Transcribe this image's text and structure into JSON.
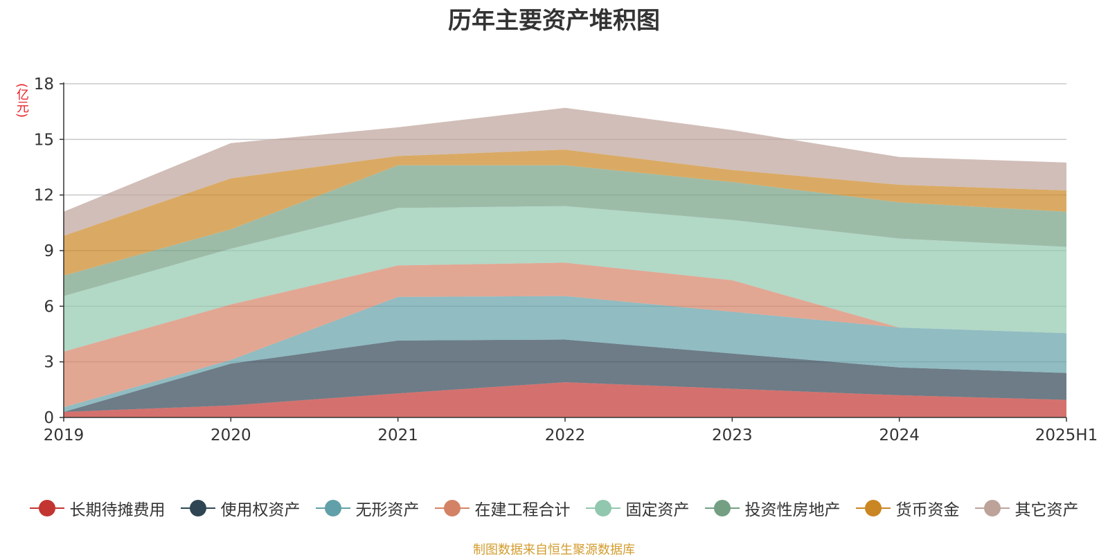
{
  "chart_data": {
    "type": "area",
    "stacked": true,
    "title": "历年主要资产堆积图",
    "ylabel": "(亿元)",
    "ylim": [
      0,
      18
    ],
    "yticks": [
      0,
      3,
      6,
      9,
      12,
      15,
      18
    ],
    "categories": [
      "2019",
      "2020",
      "2021",
      "2022",
      "2023",
      "2024",
      "2025H1"
    ],
    "grid": true,
    "legend_position": "bottom",
    "series": [
      {
        "name": "长期待摊费用",
        "color": "#c23531",
        "values": [
          0.3,
          0.65,
          1.3,
          1.9,
          1.55,
          1.2,
          0.95
        ]
      },
      {
        "name": "使用权资产",
        "color": "#2f4554",
        "values": [
          0.0,
          2.25,
          2.85,
          2.3,
          1.9,
          1.5,
          1.45
        ]
      },
      {
        "name": "无形资产",
        "color": "#61a0a8",
        "values": [
          0.25,
          0.2,
          2.35,
          2.35,
          2.25,
          2.15,
          2.15
        ]
      },
      {
        "name": "在建工程合计",
        "color": "#d48265",
        "values": [
          3.0,
          3.0,
          1.7,
          1.8,
          1.7,
          0.0,
          0.0
        ]
      },
      {
        "name": "固定资产",
        "color": "#91c7ae",
        "values": [
          3.0,
          3.0,
          3.1,
          3.05,
          3.25,
          4.8,
          4.65
        ]
      },
      {
        "name": "投资性房地产",
        "color": "#749f83",
        "values": [
          1.1,
          1.05,
          2.3,
          2.2,
          2.05,
          1.95,
          1.9
        ]
      },
      {
        "name": "货币资金",
        "color": "#ca8622",
        "values": [
          2.15,
          2.75,
          0.5,
          0.85,
          0.65,
          0.95,
          1.15
        ]
      },
      {
        "name": "其它资产",
        "color": "#bda29a",
        "values": [
          1.3,
          1.9,
          1.55,
          2.25,
          2.15,
          1.5,
          1.5
        ]
      }
    ]
  },
  "source_note": "制图数据来自恒生聚源数据库"
}
